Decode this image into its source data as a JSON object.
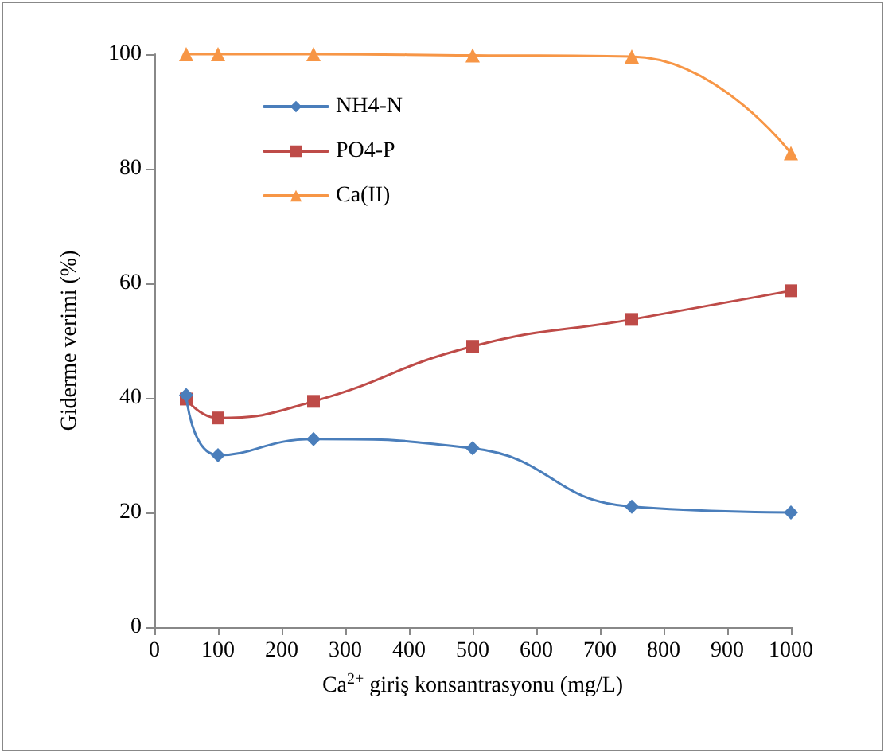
{
  "chart_data": {
    "type": "line",
    "xlabel": "Ca$^{2+}$ giriş konsantrasyonu (mg/L)",
    "ylabel": "Giderme verimi (%)",
    "x": [
      50,
      100,
      250,
      500,
      750,
      1000
    ],
    "series": [
      {
        "name": "NH4-N",
        "color": "#4a7ebb",
        "marker": "diamond",
        "values": [
          40.5,
          30,
          32.8,
          31.2,
          21,
          20
        ]
      },
      {
        "name": "PO4-P",
        "color": "#be4b48",
        "marker": "square",
        "values": [
          39.8,
          36.5,
          39.4,
          49,
          53.7,
          58.7
        ]
      },
      {
        "name": "Ca(II)",
        "color": "#f79646",
        "marker": "triangle",
        "values": [
          100,
          100,
          100,
          99.8,
          99.6,
          82.7
        ]
      }
    ],
    "xlim": [
      0,
      1000
    ],
    "xticks": [
      0,
      100,
      200,
      300,
      400,
      500,
      600,
      700,
      800,
      900,
      1000
    ],
    "ylim": [
      0,
      100
    ],
    "yticks": [
      0,
      20,
      40,
      60,
      80,
      100
    ],
    "grid": false,
    "legend": "top left",
    "line_style": "solid"
  }
}
